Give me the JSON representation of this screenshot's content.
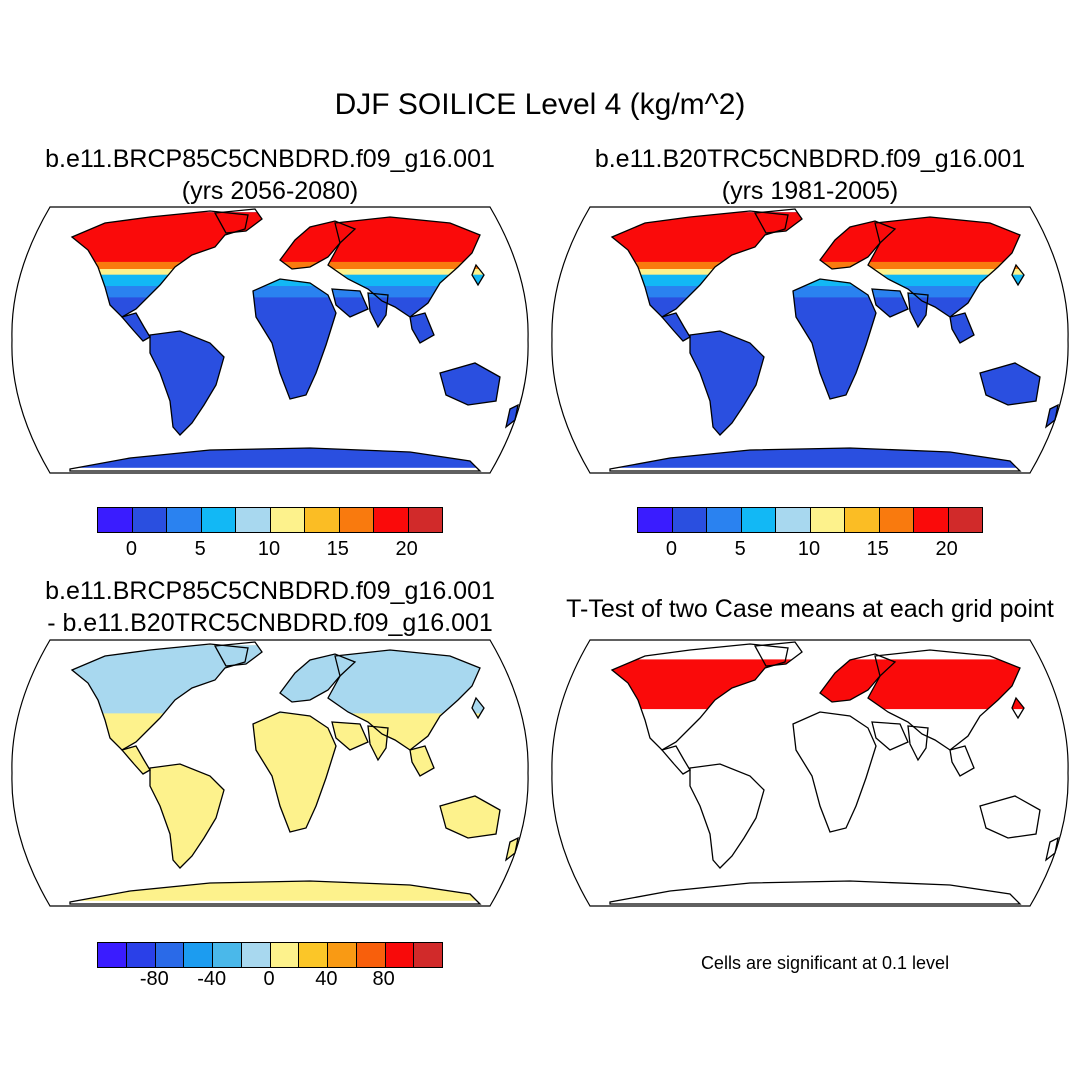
{
  "figure": {
    "title": "DJF SOILICE Level 4 (kg/m^2)"
  },
  "panels": [
    {
      "title_line1": "b.e11.BRCP85C5CNBDRD.f09_g16.001",
      "title_line2": "(yrs 2056-2080)",
      "fill": "cold",
      "colorbar": {
        "colors": [
          "#3a1cff",
          "#2a4fe0",
          "#2a82f0",
          "#12b8f5",
          "#a8d8ef",
          "#fdf28c",
          "#fbbd24",
          "#f97a0e",
          "#fa0a0a",
          "#d12a2a"
        ],
        "tick_labels": [
          "0",
          "5",
          "10",
          "15",
          "20"
        ]
      }
    },
    {
      "title_line1": "b.e11.B20TRC5CNBDRD.f09_g16.001",
      "title_line2": "(yrs 1981-2005)",
      "fill": "cold",
      "colorbar": {
        "colors": [
          "#3a1cff",
          "#2a4fe0",
          "#2a82f0",
          "#12b8f5",
          "#a8d8ef",
          "#fdf28c",
          "#fbbd24",
          "#f97a0e",
          "#fa0a0a",
          "#d12a2a"
        ],
        "tick_labels": [
          "0",
          "5",
          "10",
          "15",
          "20"
        ]
      }
    },
    {
      "title_line1": "b.e11.BRCP85C5CNBDRD.f09_g16.001",
      "title_line2": "- b.e11.B20TRC5CNBDRD.f09_g16.001",
      "fill": "diff",
      "colorbar": {
        "colors": [
          "#3a1cff",
          "#2a40e8",
          "#2a6ae8",
          "#1c9cf0",
          "#4ab8ea",
          "#a8d8ef",
          "#fdf28c",
          "#fbc628",
          "#f99a14",
          "#f85f0c",
          "#f80a0a",
          "#d12a2a"
        ],
        "tick_labels": [
          "-80",
          "-40",
          "0",
          "40",
          "80"
        ]
      }
    },
    {
      "title_line1": "T-Test of two Case means at each grid point",
      "title_line2": "",
      "fill": "ttest",
      "note": "Cells are significant at 0.1 level"
    }
  ]
}
